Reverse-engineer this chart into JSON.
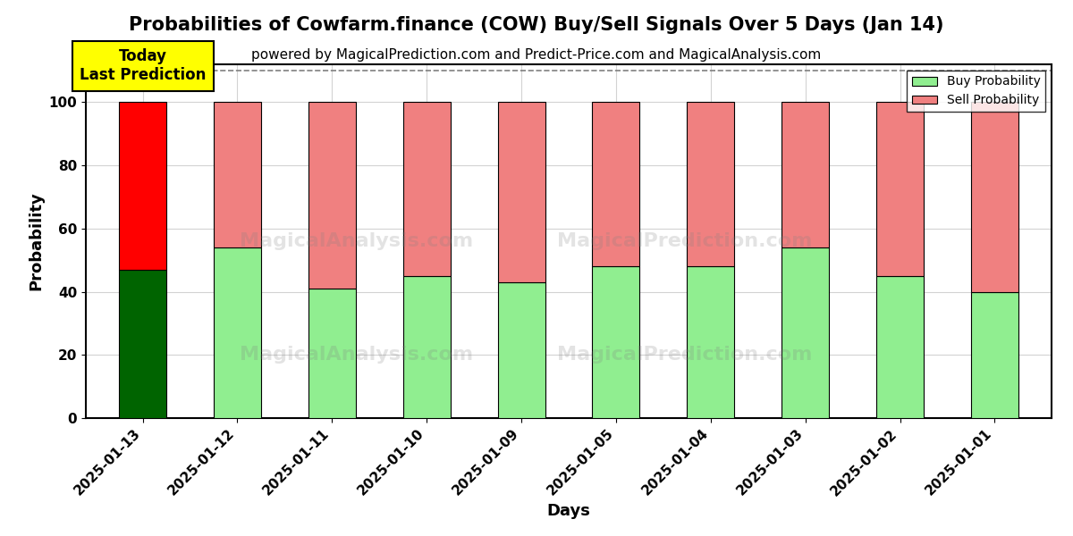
{
  "title": "Probabilities of Cowfarm.finance (COW) Buy/Sell Signals Over 5 Days (Jan 14)",
  "subtitle": "powered by MagicalPrediction.com and Predict-Price.com and MagicalAnalysis.com",
  "xlabel": "Days",
  "ylabel": "Probability",
  "categories": [
    "2025-01-13",
    "2025-01-12",
    "2025-01-11",
    "2025-01-10",
    "2025-01-09",
    "2025-01-05",
    "2025-01-04",
    "2025-01-03",
    "2025-01-02",
    "2025-01-01"
  ],
  "buy_values": [
    47,
    54,
    41,
    45,
    43,
    48,
    48,
    54,
    45,
    40
  ],
  "sell_values": [
    53,
    46,
    59,
    55,
    57,
    52,
    52,
    46,
    55,
    60
  ],
  "today_index": 0,
  "today_buy_color": "#006400",
  "today_sell_color": "#ff0000",
  "other_buy_color": "#90EE90",
  "other_sell_color": "#F08080",
  "bar_edge_color": "#000000",
  "today_label_bg": "#ffff00",
  "today_label_text": "Today\nLast Prediction",
  "legend_buy": "Buy Probability",
  "legend_sell": "Sell Probability",
  "ylim": [
    0,
    112
  ],
  "yticks": [
    0,
    20,
    40,
    60,
    80,
    100
  ],
  "dashed_line_y": 110,
  "title_fontsize": 15,
  "subtitle_fontsize": 11,
  "axis_label_fontsize": 13,
  "tick_fontsize": 11,
  "bar_width": 0.5
}
